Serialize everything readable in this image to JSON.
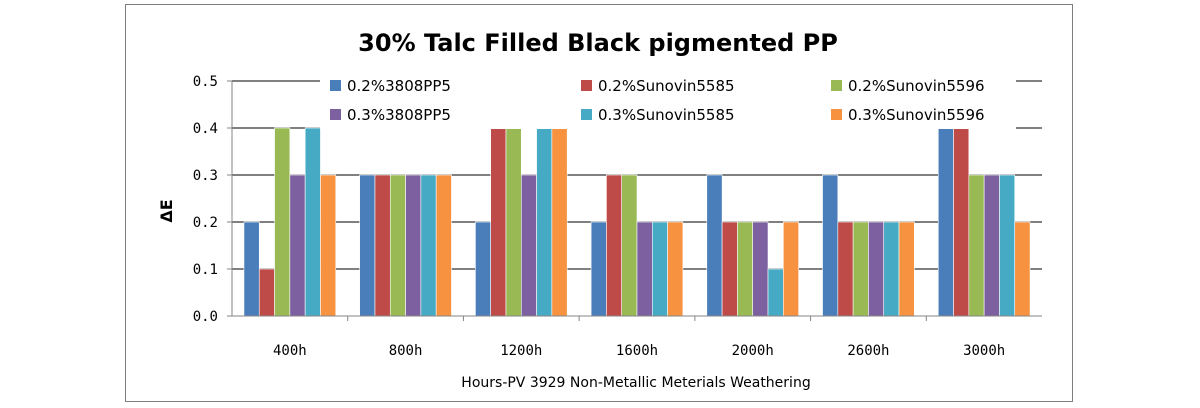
{
  "chart_data": {
    "type": "bar",
    "title": "30% Talc Filled Black pigmented PP",
    "xlabel": "Hours-PV 3929 Non-Metallic Meterials Weathering",
    "ylabel": "ΔE",
    "ylim": [
      0,
      0.5
    ],
    "yticks": [
      "0.0",
      "0.1",
      "0.2",
      "0.3",
      "0.4",
      "0.5"
    ],
    "grid": true,
    "legend_position": "top",
    "categories": [
      "400h",
      "800h",
      "1200h",
      "1600h",
      "2000h",
      "2600h",
      "3000h"
    ],
    "series": [
      {
        "name": "0.2%3808PP5",
        "color": "#4A7EBB",
        "values": [
          0.2,
          0.3,
          0.2,
          0.2,
          0.3,
          0.3,
          0.4
        ]
      },
      {
        "name": "0.2%Sunovin5585",
        "color": "#BE4B48",
        "values": [
          0.1,
          0.3,
          0.4,
          0.3,
          0.2,
          0.2,
          0.4
        ]
      },
      {
        "name": "0.2%Sunovin5596",
        "color": "#98B954",
        "values": [
          0.4,
          0.3,
          0.4,
          0.3,
          0.2,
          0.2,
          0.3
        ]
      },
      {
        "name": "0.3%3808PP5",
        "color": "#7D60A0",
        "values": [
          0.3,
          0.3,
          0.3,
          0.2,
          0.2,
          0.2,
          0.3
        ]
      },
      {
        "name": "0.3%Sunovin5585",
        "color": "#46AAC5",
        "values": [
          0.4,
          0.3,
          0.4,
          0.2,
          0.1,
          0.2,
          0.3
        ]
      },
      {
        "name": "0.3%Sunovin5596",
        "color": "#F69240",
        "values": [
          0.3,
          0.3,
          0.4,
          0.2,
          0.2,
          0.2,
          0.2
        ]
      }
    ]
  }
}
